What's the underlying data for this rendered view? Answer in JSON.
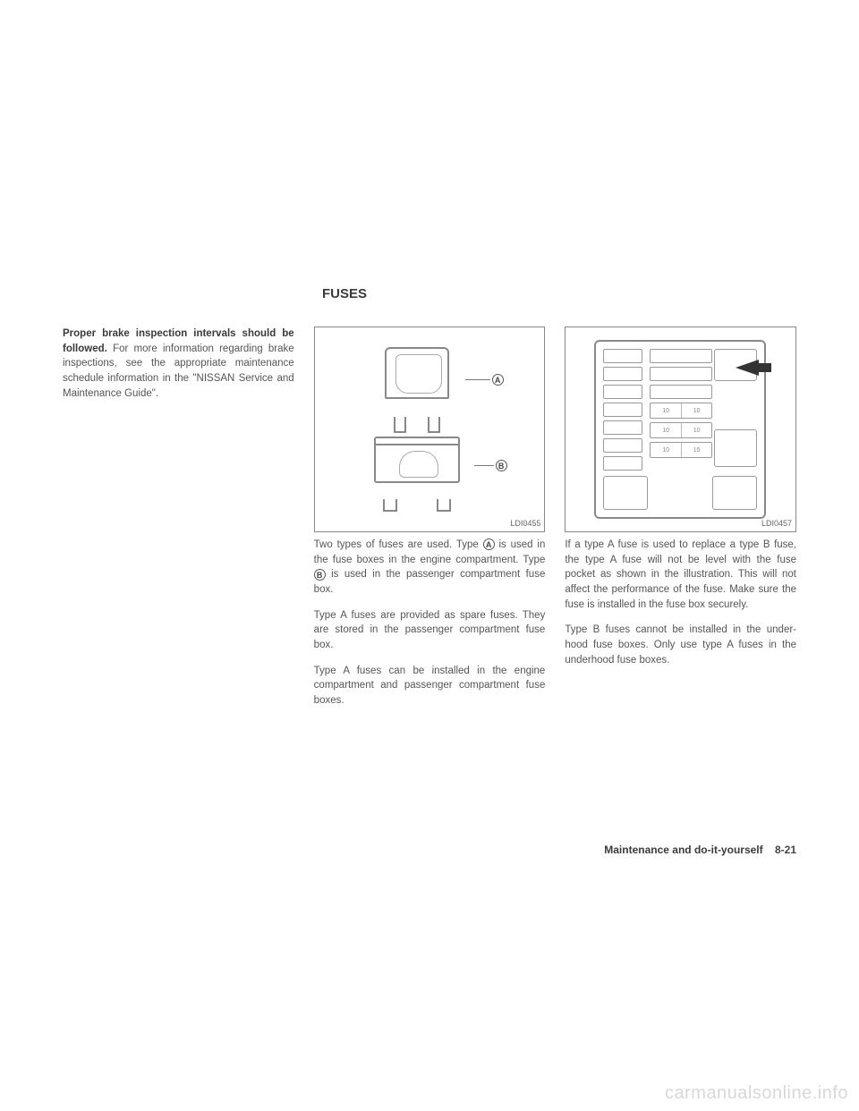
{
  "section_title": "FUSES",
  "col1": {
    "p1_bold": "Proper brake inspection intervals should be followed.",
    "p1_rest": " For more information regarding brake inspections, see the appropriate maintenance schedule information in the \"NISSAN Service and Maintenance Guide\"."
  },
  "fig1": {
    "caption": "LDI0455",
    "labelA": "A",
    "labelB": "B"
  },
  "col2": {
    "p1a": "Two types of fuses are used. Type ",
    "p1b": " is used in the fuse boxes in the engine compartment. Type ",
    "p1c": " is used in the passenger compartment fuse box.",
    "p2": "Type A fuses are provided as spare fuses. They are stored in the passenger compartment fuse box.",
    "p3": "Type A fuses can be installed in the engine compartment and passenger compartment fuse boxes."
  },
  "fig2": {
    "caption": "LDI0457",
    "nums": [
      "10",
      "10",
      "10",
      "10",
      "10",
      "15"
    ]
  },
  "col3": {
    "p1": "If a type A fuse is used to replace a type B fuse, the type A fuse will not be level with the fuse pocket as shown in the illustration. This will not affect the performance of the fuse. Make sure the fuse is installed in the fuse box securely.",
    "p2": "Type B fuses cannot be installed in the under-hood fuse boxes. Only use type A fuses in the underhood fuse boxes."
  },
  "footer": {
    "chapter": "Maintenance and do-it-yourself",
    "page": "8-21"
  },
  "watermark": "carmanualsonline.info"
}
